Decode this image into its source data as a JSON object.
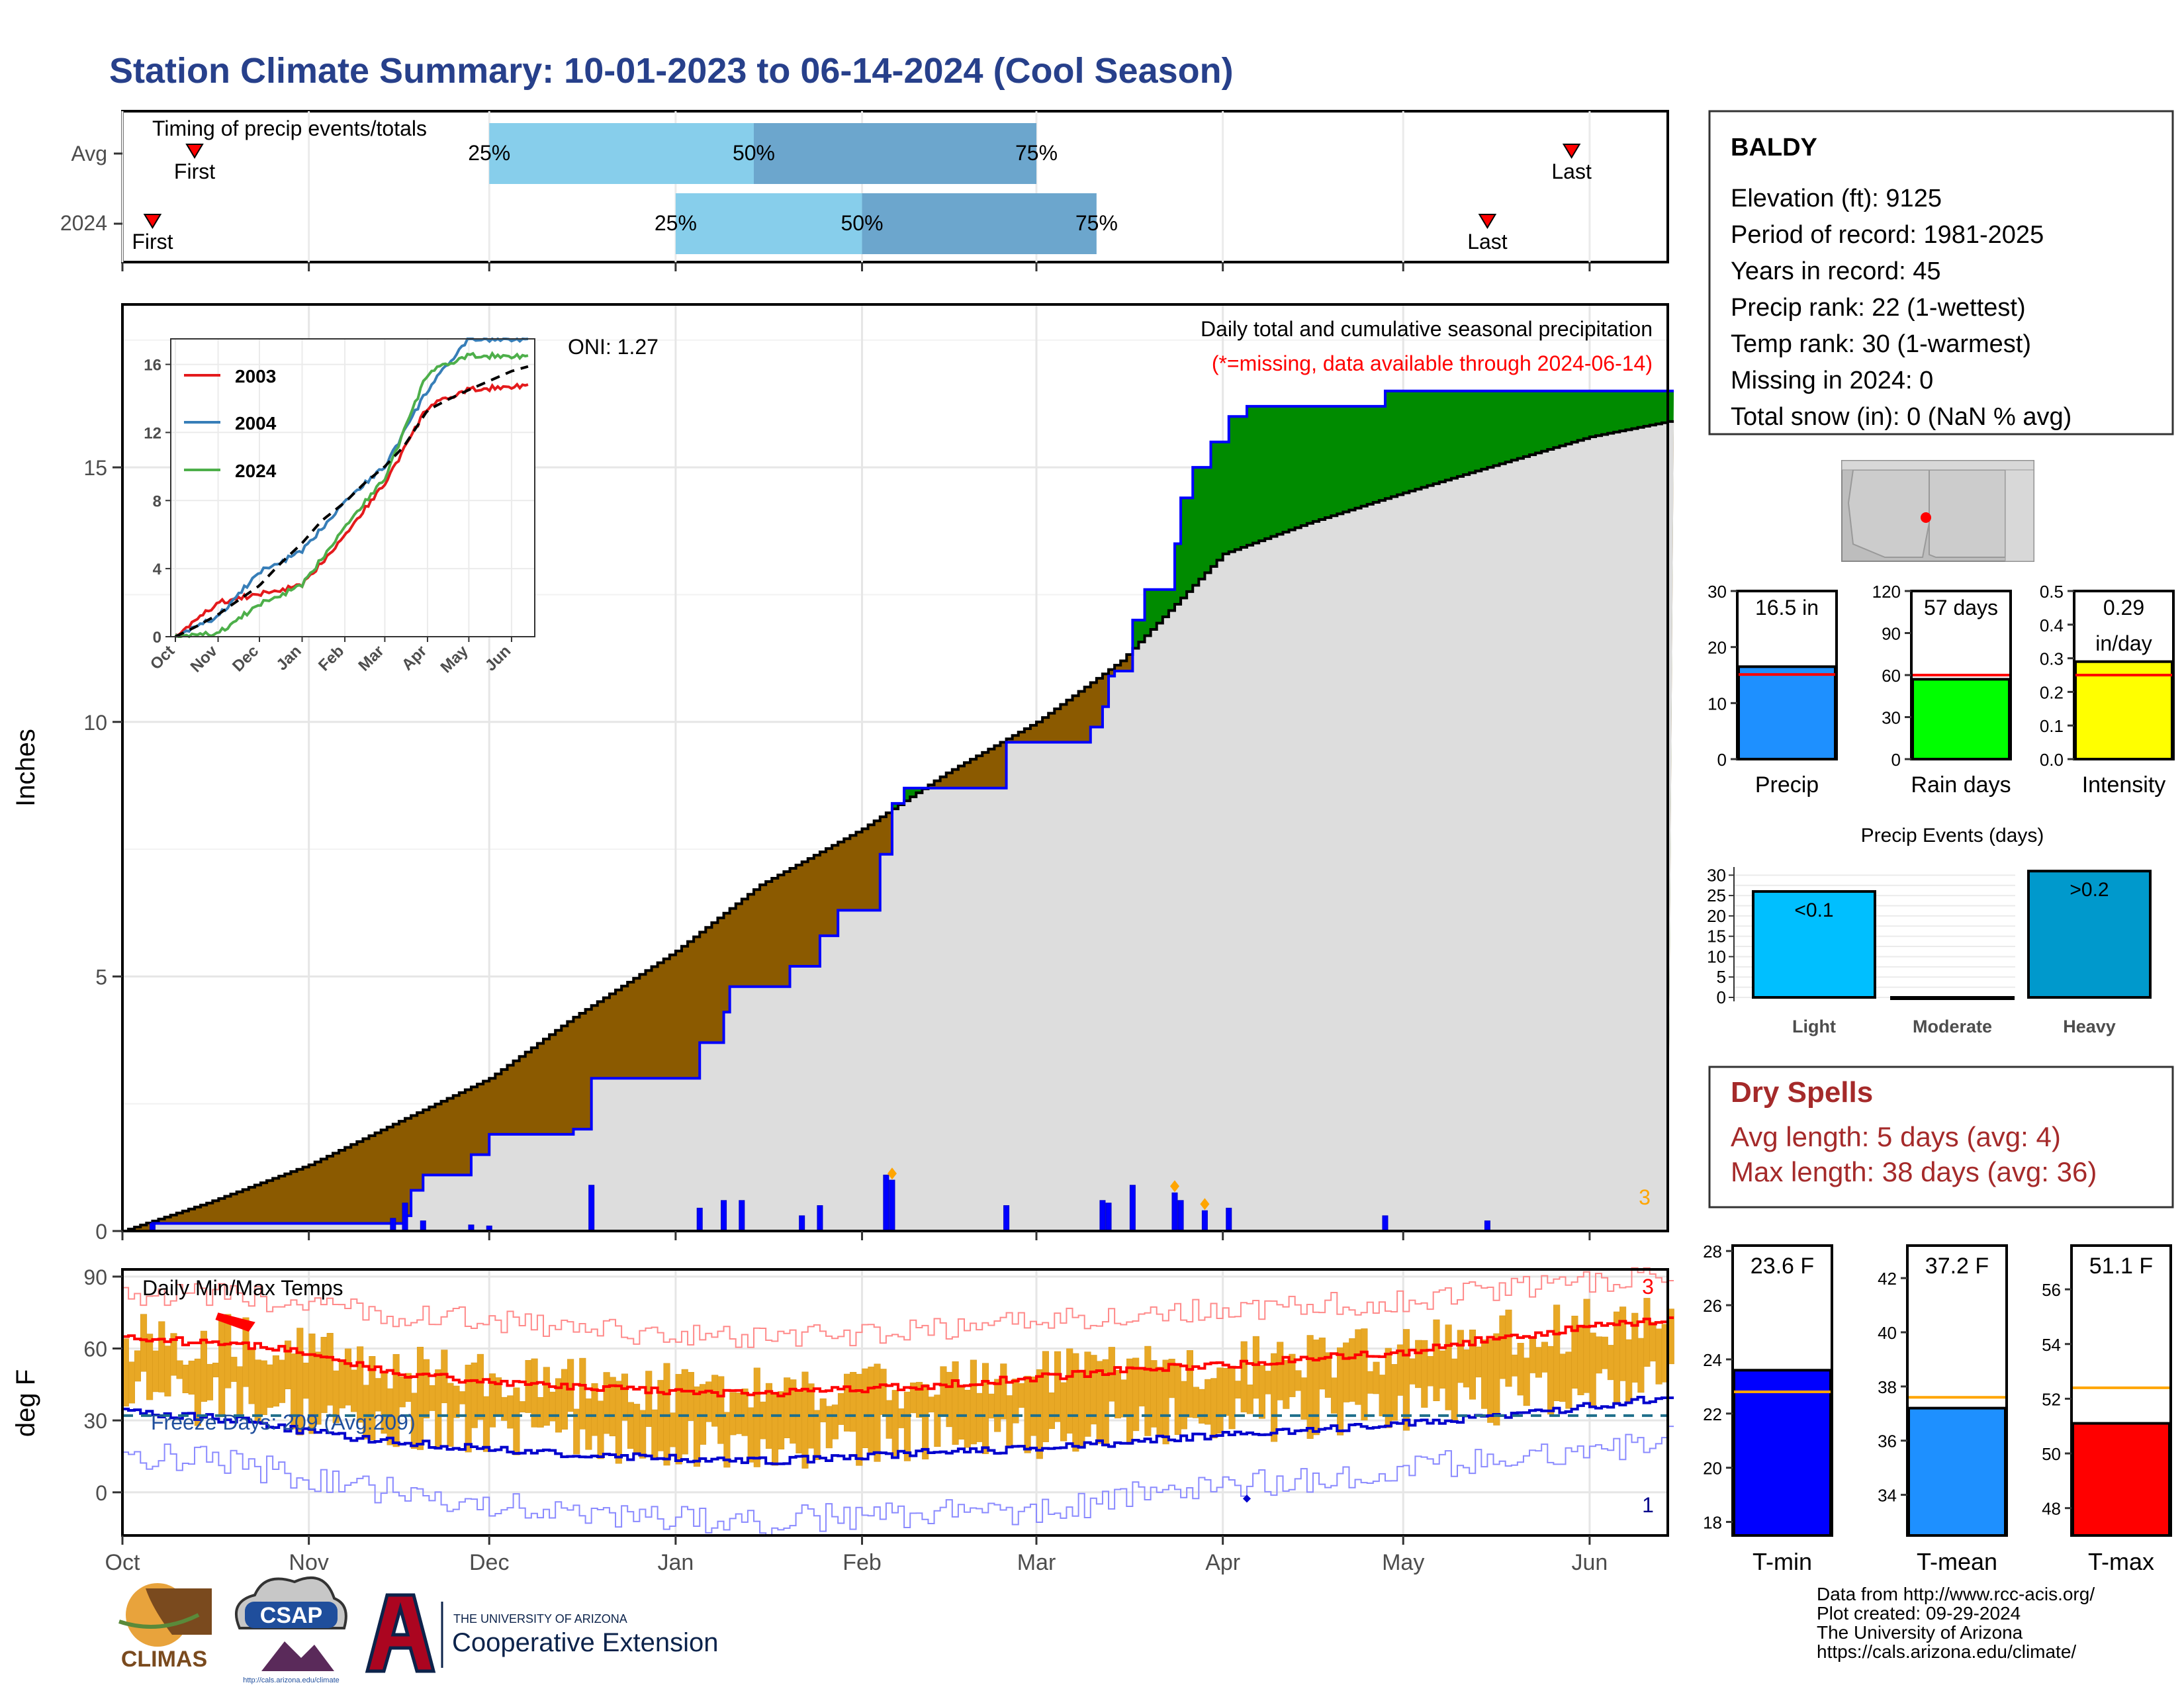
{
  "title": "Station Climate Summary: 10-01-2023 to 06-14-2024 (Cool Season)",
  "timing": {
    "label": "Timing of precip events/totals",
    "rows": [
      {
        "name": "Avg",
        "first": "First",
        "last": "Last",
        "first_date": "2023-10-13",
        "last_date": "2024-05-29",
        "q25_date": "2023-12-01",
        "q50_date": "2024-01-14",
        "q75_date": "2024-03-01",
        "q25_label": "25%",
        "q50_label": "50%",
        "q75_label": "75%"
      },
      {
        "name": "2024",
        "first": "First",
        "last": "Last",
        "first_date": "2023-10-06",
        "last_date": "2024-05-15",
        "q25_date": "2024-01-01",
        "q50_date": "2024-02-01",
        "q75_date": "2024-03-11",
        "q25_label": "25%",
        "q50_label": "50%",
        "q75_label": "75%"
      }
    ]
  },
  "precip_panel": {
    "ylabel": "Inches",
    "annotation": "Daily total and cumulative seasonal precipitation",
    "missing_note": "(*=missing, data available through 2024-06-14)",
    "oni": "ONI: 1.27",
    "corner_count": "3",
    "y_ticks": [
      "0",
      "5",
      "10",
      "15"
    ]
  },
  "inset": {
    "y_ticks": [
      "0",
      "4",
      "8",
      "12",
      "16"
    ],
    "x_ticks": [
      "Oct",
      "Nov",
      "Dec",
      "Jan",
      "Feb",
      "Mar",
      "Apr",
      "May",
      "Jun"
    ],
    "legend": [
      {
        "name": "2003",
        "color": "#e41a1c"
      },
      {
        "name": "2004",
        "color": "#377eb8"
      },
      {
        "name": "2024",
        "color": "#4daf4a"
      }
    ]
  },
  "temp_panel": {
    "ylabel": "deg F",
    "label": "Daily Min/Max Temps",
    "freeze": "Freeze Days: 209 (Avg:209)",
    "count_top": "3",
    "count_bottom": "1",
    "y_ticks": [
      "0",
      "30",
      "60",
      "90"
    ]
  },
  "months": [
    "Oct",
    "Nov",
    "Dec",
    "Jan",
    "Feb",
    "Mar",
    "Apr",
    "May",
    "Jun"
  ],
  "station": {
    "name": "BALDY",
    "lines": [
      "Elevation (ft): 9125",
      "Period of record: 1981-2025",
      "Years in record: 45",
      "Precip rank: 22 (1-wettest)",
      "Temp rank: 30 (1-warmest)",
      "Missing in 2024: 0",
      "Total snow (in): 0 (NaN % avg)"
    ]
  },
  "mini_bars": [
    {
      "label": "Precip",
      "value_text": "16.5 in",
      "value": 16.5,
      "avg": 15.1,
      "ymax": 30,
      "ticks": [
        "0",
        "10",
        "20",
        "30"
      ],
      "color": "#1e90ff"
    },
    {
      "label": "Rain days",
      "value_text": "57 days",
      "value": 57,
      "avg": 60,
      "ymax": 120,
      "ticks": [
        "0",
        "30",
        "60",
        "90",
        "120"
      ],
      "color": "#00ff00"
    },
    {
      "label": "Intensity",
      "value_text": "0.29",
      "value_text2": "in/day",
      "value": 0.29,
      "avg": 0.25,
      "ymax": 0.5,
      "ticks": [
        "0.0",
        "0.1",
        "0.2",
        "0.3",
        "0.4",
        "0.5"
      ],
      "color": "#ffff00"
    }
  ],
  "events": {
    "title": "Precip Events (days)",
    "categories": [
      "Light",
      "Moderate",
      "Heavy"
    ],
    "labels": [
      "<0.1",
      "",
      ">0.2"
    ],
    "values": [
      26,
      0,
      31
    ],
    "colors": [
      "#00bfff",
      "#1e90ff",
      "#0099cc"
    ],
    "y_ticks": [
      "0",
      "5",
      "10",
      "15",
      "20",
      "25",
      "30"
    ]
  },
  "dry_spells": {
    "title": "Dry Spells",
    "avg_length": "Avg length: 5 days (avg: 4)",
    "max_length": "Max length: 38 days (avg: 36)"
  },
  "temp_bars": [
    {
      "label": "T-min",
      "value_text": "23.6 F",
      "value": 23.6,
      "avg": 22.8,
      "ymin": 17.5,
      "ymax": 28.2,
      "ticks": [
        "18",
        "20",
        "22",
        "24",
        "26",
        "28"
      ],
      "color": "#0000ff"
    },
    {
      "label": "T-mean",
      "value_text": "37.2 F",
      "value": 37.2,
      "avg": 37.6,
      "ymin": 32.5,
      "ymax": 43.2,
      "ticks": [
        "34",
        "36",
        "38",
        "40",
        "42"
      ],
      "color": "#1e90ff"
    },
    {
      "label": "T-max",
      "value_text": "51.1 F",
      "value": 51.1,
      "avg": 52.4,
      "ymin": 47.0,
      "ymax": 57.6,
      "ticks": [
        "48",
        "50",
        "52",
        "54",
        "56"
      ],
      "color": "#ff0000"
    }
  ],
  "footer": {
    "lines": [
      "Data from http://www.rcc-acis.org/",
      "Plot created: 09-29-2024",
      "The University of Arizona",
      "https://cals.arizona.edu/climate/"
    ],
    "logos": {
      "climas": "CLIMAS",
      "csap": "CSAP",
      "csap_url": "http://cals.arizona.edu/climate",
      "ua_small": "THE UNIVERSITY OF ARIZONA",
      "ua_ext": "Cooperative Extension"
    }
  },
  "chart_data": {
    "type": "area",
    "title": "Station Climate Summary: 10-01-2023 to 06-14-2024 (Cool Season)",
    "ylabel": "Inches",
    "ylim": [
      0,
      18
    ],
    "cumulative_avg": [
      {
        "date": "2023-10-01",
        "value": 0.0
      },
      {
        "date": "2023-10-15",
        "value": 0.55
      },
      {
        "date": "2023-11-01",
        "value": 1.3
      },
      {
        "date": "2023-11-15",
        "value": 2.1
      },
      {
        "date": "2023-12-01",
        "value": 3.0
      },
      {
        "date": "2023-12-15",
        "value": 4.2
      },
      {
        "date": "2024-01-01",
        "value": 5.5
      },
      {
        "date": "2024-01-15",
        "value": 6.8
      },
      {
        "date": "2024-02-01",
        "value": 7.9
      },
      {
        "date": "2024-02-15",
        "value": 9.0
      },
      {
        "date": "2024-03-01",
        "value": 10.0
      },
      {
        "date": "2024-03-15",
        "value": 11.2
      },
      {
        "date": "2024-04-01",
        "value": 13.3
      },
      {
        "date": "2024-04-15",
        "value": 13.9
      },
      {
        "date": "2024-05-01",
        "value": 14.5
      },
      {
        "date": "2024-05-15",
        "value": 15.0
      },
      {
        "date": "2024-06-01",
        "value": 15.6
      },
      {
        "date": "2024-06-14",
        "value": 15.9
      }
    ],
    "cumulative_2024": [
      {
        "date": "2023-10-01",
        "value": 0.0
      },
      {
        "date": "2023-10-06",
        "value": 0.15
      },
      {
        "date": "2023-11-17",
        "value": 0.3
      },
      {
        "date": "2023-11-18",
        "value": 0.8
      },
      {
        "date": "2023-11-20",
        "value": 1.1
      },
      {
        "date": "2023-11-28",
        "value": 1.5
      },
      {
        "date": "2023-12-01",
        "value": 1.9
      },
      {
        "date": "2023-12-15",
        "value": 2.0
      },
      {
        "date": "2023-12-18",
        "value": 3.0
      },
      {
        "date": "2024-01-05",
        "value": 3.7
      },
      {
        "date": "2024-01-09",
        "value": 4.3
      },
      {
        "date": "2024-01-10",
        "value": 4.8
      },
      {
        "date": "2024-01-20",
        "value": 5.2
      },
      {
        "date": "2024-01-25",
        "value": 5.8
      },
      {
        "date": "2024-01-28",
        "value": 6.3
      },
      {
        "date": "2024-02-04",
        "value": 7.4
      },
      {
        "date": "2024-02-06",
        "value": 8.4
      },
      {
        "date": "2024-02-08",
        "value": 8.7
      },
      {
        "date": "2024-02-25",
        "value": 9.6
      },
      {
        "date": "2024-03-10",
        "value": 9.9
      },
      {
        "date": "2024-03-12",
        "value": 10.3
      },
      {
        "date": "2024-03-13",
        "value": 10.9
      },
      {
        "date": "2024-03-14",
        "value": 11.0
      },
      {
        "date": "2024-03-17",
        "value": 12.0
      },
      {
        "date": "2024-03-19",
        "value": 12.6
      },
      {
        "date": "2024-03-24",
        "value": 13.5
      },
      {
        "date": "2024-03-25",
        "value": 14.4
      },
      {
        "date": "2024-03-27",
        "value": 15.0
      },
      {
        "date": "2024-03-30",
        "value": 15.5
      },
      {
        "date": "2024-04-02",
        "value": 16.0
      },
      {
        "date": "2024-04-05",
        "value": 16.2
      },
      {
        "date": "2024-04-28",
        "value": 16.5
      },
      {
        "date": "2024-05-15",
        "value": 16.5
      },
      {
        "date": "2024-06-14",
        "value": 16.5
      }
    ],
    "daily_precip_2024": [
      {
        "date": "2023-10-06",
        "value": 0.15
      },
      {
        "date": "2023-11-15",
        "value": 0.25
      },
      {
        "date": "2023-11-17",
        "value": 0.55
      },
      {
        "date": "2023-11-20",
        "value": 0.2
      },
      {
        "date": "2023-11-28",
        "value": 0.12
      },
      {
        "date": "2023-12-01",
        "value": 0.1
      },
      {
        "date": "2023-12-18",
        "value": 0.9
      },
      {
        "date": "2024-01-05",
        "value": 0.45
      },
      {
        "date": "2024-01-09",
        "value": 0.6
      },
      {
        "date": "2024-01-12",
        "value": 0.6
      },
      {
        "date": "2024-01-22",
        "value": 0.3
      },
      {
        "date": "2024-01-25",
        "value": 0.5
      },
      {
        "date": "2024-02-05",
        "value": 1.1
      },
      {
        "date": "2024-02-06",
        "value": 1.0
      },
      {
        "date": "2024-02-25",
        "value": 0.5
      },
      {
        "date": "2024-03-12",
        "value": 0.6
      },
      {
        "date": "2024-03-13",
        "value": 0.55
      },
      {
        "date": "2024-03-17",
        "value": 0.9
      },
      {
        "date": "2024-03-24",
        "value": 0.75
      },
      {
        "date": "2024-03-25",
        "value": 0.6
      },
      {
        "date": "2024-03-29",
        "value": 0.4
      },
      {
        "date": "2024-04-02",
        "value": 0.45
      },
      {
        "date": "2024-04-28",
        "value": 0.3
      },
      {
        "date": "2024-05-15",
        "value": 0.2
      }
    ],
    "inset_series": [
      {
        "name": "2003",
        "color": "#e41a1c",
        "points": [
          [
            "2023-10-01",
            0
          ],
          [
            "2023-11-01",
            2
          ],
          [
            "2023-12-01",
            2.5
          ],
          [
            "2024-01-01",
            3
          ],
          [
            "2024-02-01",
            6
          ],
          [
            "2024-03-01",
            9
          ],
          [
            "2024-04-01",
            13.5
          ],
          [
            "2024-05-01",
            14.5
          ],
          [
            "2024-06-14",
            14.8
          ]
        ]
      },
      {
        "name": "2004",
        "color": "#377eb8",
        "points": [
          [
            "2023-10-01",
            0
          ],
          [
            "2023-11-01",
            1.2
          ],
          [
            "2023-12-01",
            3.8
          ],
          [
            "2024-01-01",
            5
          ],
          [
            "2024-02-01",
            8
          ],
          [
            "2024-03-01",
            10
          ],
          [
            "2024-04-01",
            14.5
          ],
          [
            "2024-05-01",
            17.5
          ],
          [
            "2024-06-14",
            17.5
          ]
        ]
      },
      {
        "name": "2024",
        "color": "#4daf4a",
        "points": [
          [
            "2023-10-01",
            0
          ],
          [
            "2023-11-01",
            0.2
          ],
          [
            "2023-12-01",
            1.9
          ],
          [
            "2024-01-01",
            3
          ],
          [
            "2024-02-01",
            6.5
          ],
          [
            "2024-03-01",
            9.3
          ],
          [
            "2024-04-01",
            15.5
          ],
          [
            "2024-05-01",
            16.5
          ],
          [
            "2024-06-14",
            16.5
          ]
        ]
      }
    ],
    "temps": {
      "ylabel": "deg F",
      "ylim": [
        -18,
        93
      ],
      "avg_max": [
        [
          "2023-10-01",
          64
        ],
        [
          "2023-10-20",
          62
        ],
        [
          "2023-11-01",
          58
        ],
        [
          "2023-11-15",
          50
        ],
        [
          "2023-12-01",
          46
        ],
        [
          "2023-12-15",
          44
        ],
        [
          "2024-01-01",
          42
        ],
        [
          "2024-01-15",
          41
        ],
        [
          "2024-02-01",
          43
        ],
        [
          "2024-02-15",
          45
        ],
        [
          "2024-03-01",
          48
        ],
        [
          "2024-03-15",
          51
        ],
        [
          "2024-04-01",
          53
        ],
        [
          "2024-04-15",
          56
        ],
        [
          "2024-05-01",
          58
        ],
        [
          "2024-05-15",
          64
        ],
        [
          "2024-06-01",
          69
        ],
        [
          "2024-06-14",
          72
        ]
      ],
      "avg_min": [
        [
          "2023-10-01",
          34
        ],
        [
          "2023-10-20",
          30
        ],
        [
          "2023-11-01",
          25
        ],
        [
          "2023-11-15",
          21
        ],
        [
          "2023-12-01",
          18
        ],
        [
          "2023-12-15",
          16
        ],
        [
          "2024-01-01",
          14
        ],
        [
          "2024-01-15",
          13
        ],
        [
          "2024-02-01",
          15
        ],
        [
          "2024-02-15",
          17
        ],
        [
          "2024-03-01",
          18
        ],
        [
          "2024-03-15",
          21
        ],
        [
          "2024-04-01",
          24
        ],
        [
          "2024-04-15",
          26
        ],
        [
          "2024-05-01",
          29
        ],
        [
          "2024-05-15",
          31
        ],
        [
          "2024-06-01",
          36
        ],
        [
          "2024-06-14",
          40
        ]
      ],
      "record_max": [
        [
          "2023-10-01",
          83
        ],
        [
          "2023-10-20",
          82
        ],
        [
          "2023-11-01",
          78
        ],
        [
          "2023-11-15",
          74
        ],
        [
          "2023-12-01",
          72
        ],
        [
          "2023-12-15",
          68
        ],
        [
          "2024-01-01",
          66
        ],
        [
          "2024-01-15",
          64
        ],
        [
          "2024-02-01",
          66
        ],
        [
          "2024-02-15",
          68
        ],
        [
          "2024-03-01",
          72
        ],
        [
          "2024-03-15",
          74
        ],
        [
          "2024-04-01",
          76
        ],
        [
          "2024-04-15",
          78
        ],
        [
          "2024-05-01",
          80
        ],
        [
          "2024-05-15",
          84
        ],
        [
          "2024-06-01",
          88
        ],
        [
          "2024-06-14",
          90
        ]
      ],
      "record_min": [
        [
          "2023-10-01",
          16
        ],
        [
          "2023-10-20",
          12
        ],
        [
          "2023-11-01",
          5
        ],
        [
          "2023-11-15",
          0
        ],
        [
          "2023-12-01",
          -5
        ],
        [
          "2023-12-15",
          -8
        ],
        [
          "2024-01-01",
          -12
        ],
        [
          "2024-01-15",
          -12
        ],
        [
          "2024-02-01",
          -10
        ],
        [
          "2024-02-15",
          -8
        ],
        [
          "2024-03-01",
          -8
        ],
        [
          "2024-03-15",
          -2
        ],
        [
          "2024-04-01",
          2
        ],
        [
          "2024-04-15",
          6
        ],
        [
          "2024-05-01",
          10
        ],
        [
          "2024-05-15",
          14
        ],
        [
          "2024-06-01",
          18
        ],
        [
          "2024-06-14",
          22
        ]
      ],
      "freeze_line": 32
    }
  }
}
